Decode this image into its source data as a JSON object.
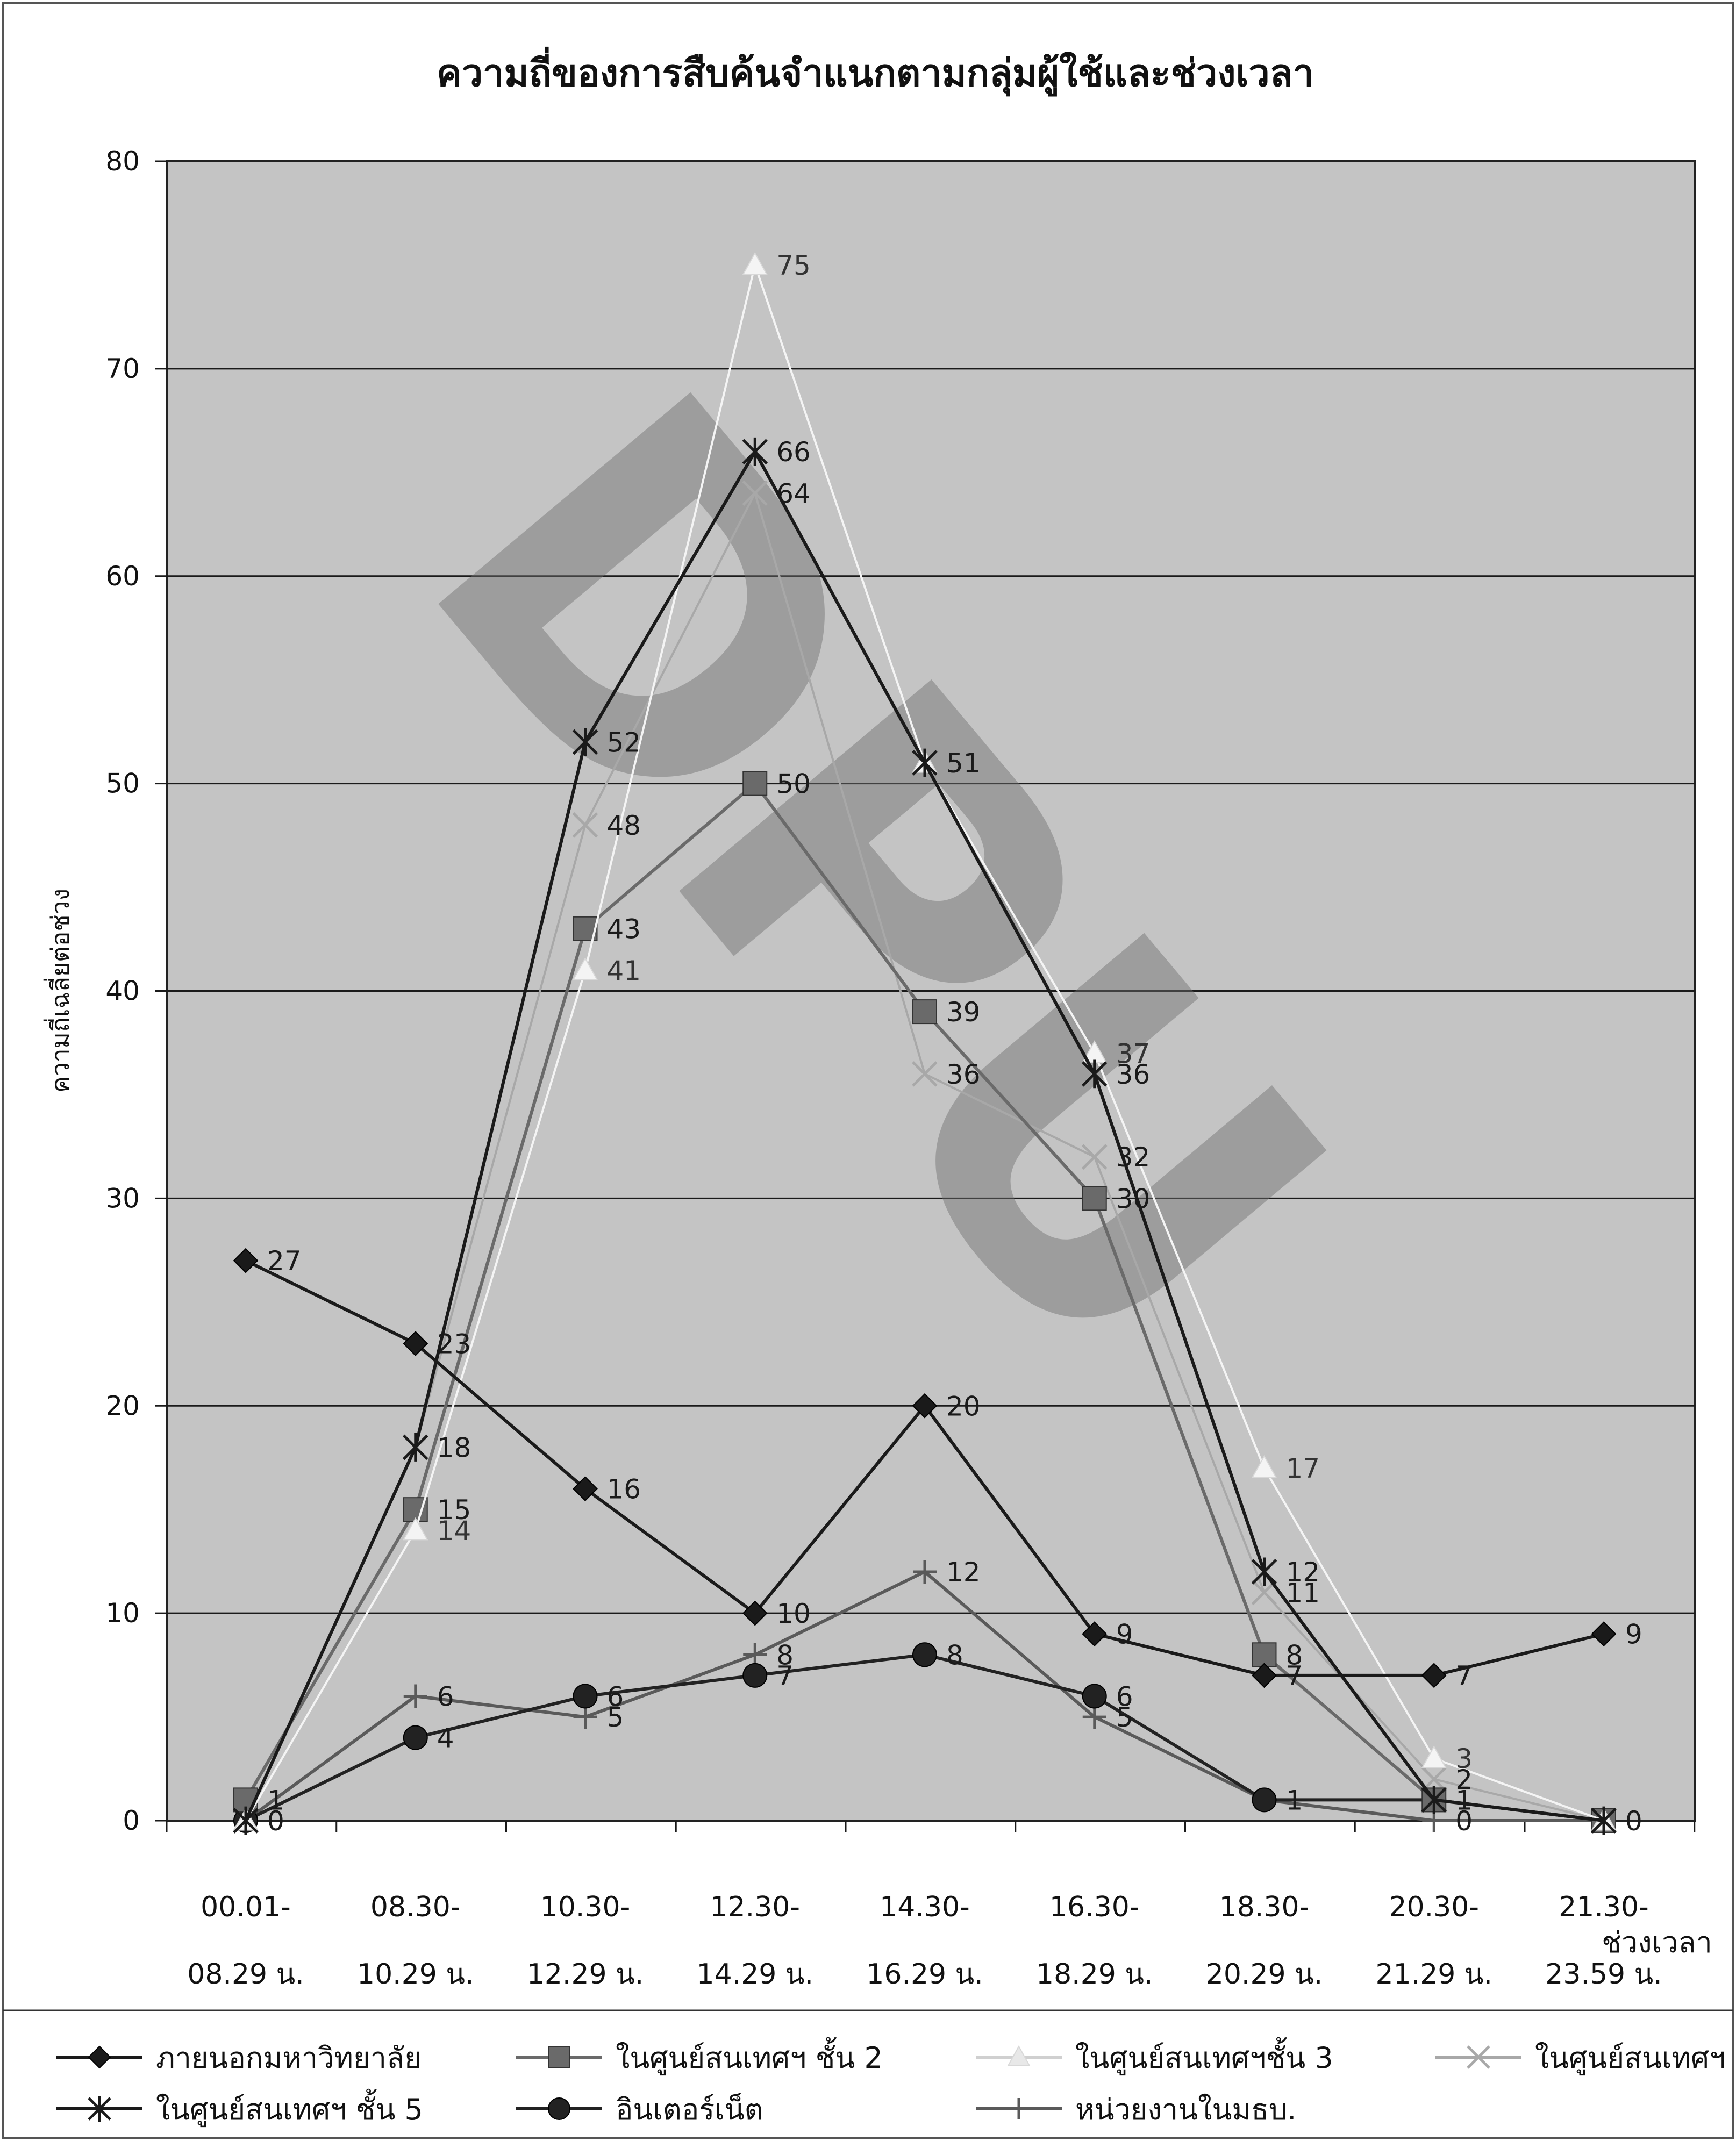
{
  "chart_data": {
    "type": "line",
    "title": "ความถี่ของการสืบค้นจำแนกตามกลุ่มผู้ใช้และช่วงเวลา",
    "ylabel": "ความถี่เฉลี่ยต่อช่วง",
    "xlabel": "ช่วงเวลา",
    "ylim": [
      0,
      80
    ],
    "yticks": [
      0,
      10,
      20,
      30,
      40,
      50,
      60,
      70,
      80
    ],
    "grid": true,
    "legend_position": "bottom",
    "watermark": "DPU",
    "categories": [
      {
        "line1": "00.01-",
        "line2": "08.29 น."
      },
      {
        "line1": "08.30-",
        "line2": "10.29 น."
      },
      {
        "line1": "10.30-",
        "line2": "12.29 น."
      },
      {
        "line1": "12.30-",
        "line2": "14.29 น."
      },
      {
        "line1": "14.30-",
        "line2": "16.29 น."
      },
      {
        "line1": "16.30-",
        "line2": "18.29 น."
      },
      {
        "line1": "18.30-",
        "line2": "20.29 น."
      },
      {
        "line1": "20.30-",
        "line2": "21.29 น."
      },
      {
        "line1": "21.30-",
        "line2": "23.59 น."
      }
    ],
    "series": [
      {
        "name": "ภายนอกมหาวิทยาลัย",
        "marker": "diamond",
        "color": "#1a1a1a",
        "values": [
          27,
          23,
          16,
          10,
          20,
          9,
          7,
          7,
          9
        ]
      },
      {
        "name": "ในศูนย์สนเทศฯ ชั้น 2",
        "marker": "square",
        "color": "#6a6a6a",
        "values": [
          1,
          15,
          43,
          50,
          39,
          30,
          8,
          1,
          0
        ]
      },
      {
        "name": "ในศูนย์สนเทศฯชั้น 3",
        "marker": "triangle",
        "color": "#f4f4f4",
        "values": [
          0,
          14,
          41,
          75,
          51,
          37,
          17,
          3,
          0
        ]
      },
      {
        "name": "ในศูนย์สนเทศฯ",
        "marker": "x",
        "color": "#a8a8a8",
        "values": [
          0,
          18,
          48,
          64,
          36,
          32,
          11,
          2,
          0
        ]
      },
      {
        "name": "ในศูนย์สนเทศฯ ชั้น 5",
        "marker": "star",
        "color": "#1a1a1a",
        "values": [
          0,
          18,
          52,
          66,
          51,
          36,
          12,
          1,
          0
        ]
      },
      {
        "name": "อินเตอร์เน็ต",
        "marker": "circle",
        "color": "#222222",
        "values": [
          0,
          4,
          6,
          7,
          8,
          6,
          1,
          1,
          0
        ]
      },
      {
        "name": "หน่วยงานในมธบ.",
        "marker": "plus",
        "color": "#5a5a5a",
        "values": [
          0,
          6,
          5,
          8,
          12,
          5,
          1,
          0,
          0
        ]
      }
    ],
    "data_labels": [
      {
        "text": "27",
        "series": 0,
        "point": 0
      },
      {
        "text": "23",
        "series": 0,
        "point": 1
      },
      {
        "text": "16",
        "series": 0,
        "point": 2
      },
      {
        "text": "10",
        "series": 0,
        "point": 3
      },
      {
        "text": "20",
        "series": 0,
        "point": 4
      },
      {
        "text": "9",
        "series": 0,
        "point": 5
      },
      {
        "text": "7",
        "series": 0,
        "point": 6
      },
      {
        "text": "7",
        "series": 0,
        "point": 7
      },
      {
        "text": "9",
        "series": 0,
        "point": 8
      },
      {
        "text": "1",
        "series": 1,
        "point": 0
      },
      {
        "text": "15",
        "series": 1,
        "point": 1
      },
      {
        "text": "43",
        "series": 1,
        "point": 2
      },
      {
        "text": "50",
        "series": 1,
        "point": 3
      },
      {
        "text": "39",
        "series": 1,
        "point": 4
      },
      {
        "text": "30",
        "series": 1,
        "point": 5
      },
      {
        "text": "8",
        "series": 1,
        "point": 6
      },
      {
        "text": "1",
        "series": 1,
        "point": 7
      },
      {
        "text": "0",
        "series": 1,
        "point": 8
      },
      {
        "text": "0",
        "series": 2,
        "point": 0
      },
      {
        "text": "14",
        "series": 2,
        "point": 1
      },
      {
        "text": "41",
        "series": 2,
        "point": 2
      },
      {
        "text": "75",
        "series": 2,
        "point": 3
      },
      {
        "text": "51",
        "series": 2,
        "point": 4
      },
      {
        "text": "37",
        "series": 2,
        "point": 5
      },
      {
        "text": "17",
        "series": 2,
        "point": 6
      },
      {
        "text": "3",
        "series": 2,
        "point": 7
      },
      {
        "text": "48",
        "series": 3,
        "point": 2
      },
      {
        "text": "64",
        "series": 3,
        "point": 3
      },
      {
        "text": "36",
        "series": 3,
        "point": 4
      },
      {
        "text": "32",
        "series": 3,
        "point": 5
      },
      {
        "text": "11",
        "series": 3,
        "point": 6
      },
      {
        "text": "2",
        "series": 3,
        "point": 7
      },
      {
        "text": "18",
        "series": 4,
        "point": 1
      },
      {
        "text": "52",
        "series": 4,
        "point": 2
      },
      {
        "text": "66",
        "series": 4,
        "point": 3
      },
      {
        "text": "51",
        "series": 4,
        "point": 4
      },
      {
        "text": "36",
        "series": 4,
        "point": 5
      },
      {
        "text": "12",
        "series": 4,
        "point": 6
      },
      {
        "text": "4",
        "series": 5,
        "point": 1
      },
      {
        "text": "6",
        "series": 5,
        "point": 2
      },
      {
        "text": "7",
        "series": 5,
        "point": 3
      },
      {
        "text": "8",
        "series": 5,
        "point": 4
      },
      {
        "text": "6",
        "series": 5,
        "point": 5
      },
      {
        "text": "1",
        "series": 5,
        "point": 6
      },
      {
        "text": "0",
        "series": 5,
        "point": 0
      },
      {
        "text": "6",
        "series": 6,
        "point": 1
      },
      {
        "text": "5",
        "series": 6,
        "point": 2
      },
      {
        "text": "8",
        "series": 6,
        "point": 3
      },
      {
        "text": "12",
        "series": 6,
        "point": 4
      },
      {
        "text": "5",
        "series": 6,
        "point": 5
      },
      {
        "text": "0",
        "series": 6,
        "point": 7
      }
    ]
  }
}
